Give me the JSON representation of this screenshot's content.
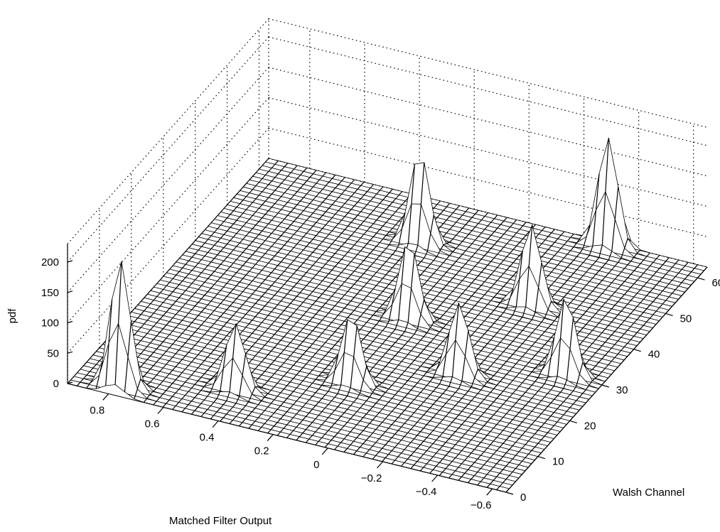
{
  "chart_data": {
    "type": "surface3d",
    "xlabel": "Matched Filter Output",
    "ylabel": "Walsh Channel",
    "zlabel": "pdf",
    "x_ticks": [
      "0.8",
      "0.6",
      "0.4",
      "0.2",
      "0",
      "−0.2",
      "−0.4",
      "−0.6"
    ],
    "y_ticks": [
      "0",
      "10",
      "20",
      "30",
      "40",
      "50",
      "60"
    ],
    "z_ticks": [
      "0",
      "50",
      "100",
      "150",
      "200"
    ],
    "xlim": [
      -0.65,
      0.95
    ],
    "ylim": [
      0,
      63
    ],
    "zlim": [
      0,
      230
    ],
    "grid": true,
    "peaks": [
      {
        "walsh_channel": 2,
        "matched_filter_output": 0.78,
        "pdf": 210
      },
      {
        "walsh_channel": 8,
        "matched_filter_output": 0.43,
        "pdf": 110
      },
      {
        "walsh_channel": 16,
        "matched_filter_output": 0.1,
        "pdf": 115
      },
      {
        "walsh_channel": 24,
        "matched_filter_output": -0.2,
        "pdf": 120
      },
      {
        "walsh_channel": 30,
        "matched_filter_output": -0.52,
        "pdf": 130
      },
      {
        "walsh_channel": 34,
        "matched_filter_output": 0.1,
        "pdf": 130
      },
      {
        "walsh_channel": 44,
        "matched_filter_output": -0.23,
        "pdf": 135
      },
      {
        "walsh_channel": 52,
        "matched_filter_output": 0.27,
        "pdf": 150
      },
      {
        "walsh_channel": 62,
        "matched_filter_output": -0.3,
        "pdf": 180
      }
    ]
  }
}
